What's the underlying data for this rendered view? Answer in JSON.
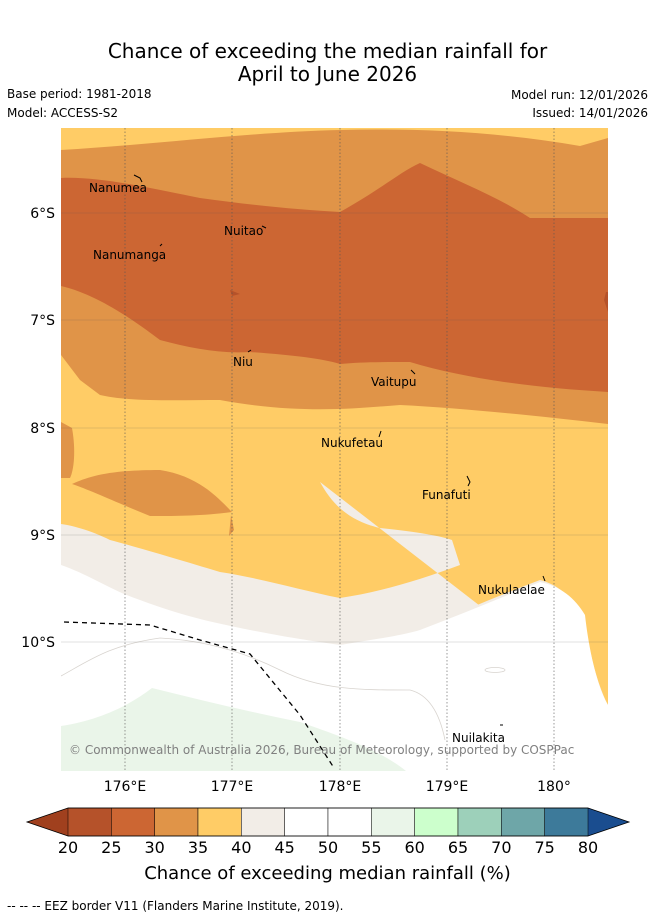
{
  "title_line1": "Chance of exceeding the median rainfall for",
  "title_line2": "April to June 2026",
  "base_period": "Base period: 1981-2018",
  "model": "Model: ACCESS-S2",
  "model_run": "Model run: 12/01/2026",
  "issued": "Issued: 14/01/2026",
  "copyright": "© Commonwealth of Australia 2026, Bureau of Meteorology, supported by COSPPac",
  "lat_labels": [
    "6°S",
    "7°S",
    "8°S",
    "9°S",
    "10°S"
  ],
  "lon_labels": [
    "176°E",
    "177°E",
    "178°E",
    "179°E",
    "180°"
  ],
  "places": {
    "nanumea": "Nanumea",
    "nuitao": "Nuitao",
    "nanumanga": "Nanumanga",
    "niu": "Niu",
    "vaitupu": "Vaitupu",
    "nukufetau": "Nukufetau",
    "funafuti": "Funafuti",
    "nukulaelae": "Nukulaelae",
    "nuilakita": "Nuilakita"
  },
  "colorbar": {
    "ticks": [
      "20",
      "25",
      "30",
      "35",
      "40",
      "45",
      "50",
      "55",
      "60",
      "65",
      "70",
      "75",
      "80"
    ],
    "colors": [
      "#b5522a",
      "#cc6633",
      "#e09448",
      "#ffcc66",
      "#f2ede7",
      "#ffffff",
      "#ffffff",
      "#eaf5e9",
      "#ccffcc",
      "#9dd0ba",
      "#6ea6a8",
      "#3d7a9a"
    ],
    "under_color": "#a0401e",
    "over_color": "#1a4d8f",
    "title": "Chance of exceeding median rainfall (%)"
  },
  "footnote": "--  --  -- EEZ border V11 (Flanders Marine Institute, 2019)."
}
